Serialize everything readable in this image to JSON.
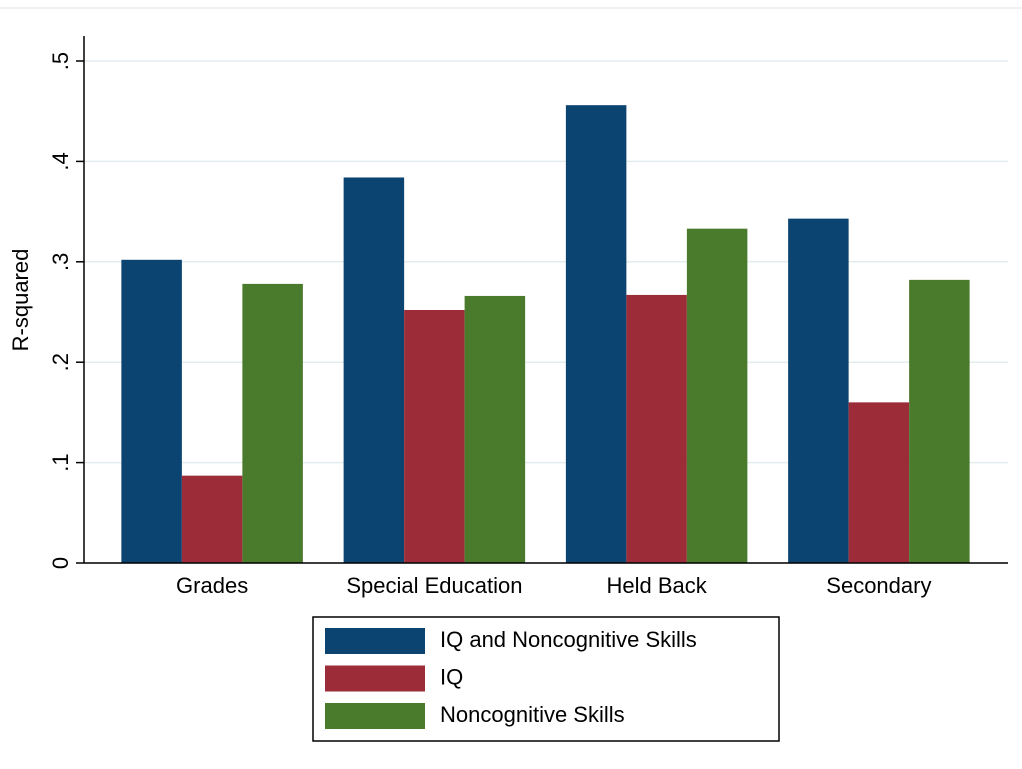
{
  "chart_data": {
    "type": "bar",
    "y_label": "R-squared",
    "categories": [
      "Grades",
      "Special Education",
      "Held Back",
      "Secondary"
    ],
    "series": [
      {
        "name": "IQ and Noncognitive Skills",
        "color": "#0b4471",
        "values": [
          0.302,
          0.384,
          0.456,
          0.343
        ]
      },
      {
        "name": "IQ",
        "color": "#9c2d38",
        "values": [
          0.087,
          0.252,
          0.267,
          0.16
        ]
      },
      {
        "name": "Noncognitive Skills",
        "color": "#4a7a2c",
        "values": [
          0.278,
          0.266,
          0.333,
          0.282
        ]
      }
    ],
    "ylim": [
      0,
      0.5
    ],
    "yticks": [
      0,
      {
        "value": 0.1,
        "label": ".1"
      },
      {
        "value": 0.2,
        "label": ".2"
      },
      {
        "value": 0.3,
        "label": ".3"
      },
      {
        "value": 0.4,
        "label": ".4"
      },
      {
        "value": 0.5,
        "label": ".5"
      }
    ],
    "grid": true,
    "legend": "bottom"
  }
}
